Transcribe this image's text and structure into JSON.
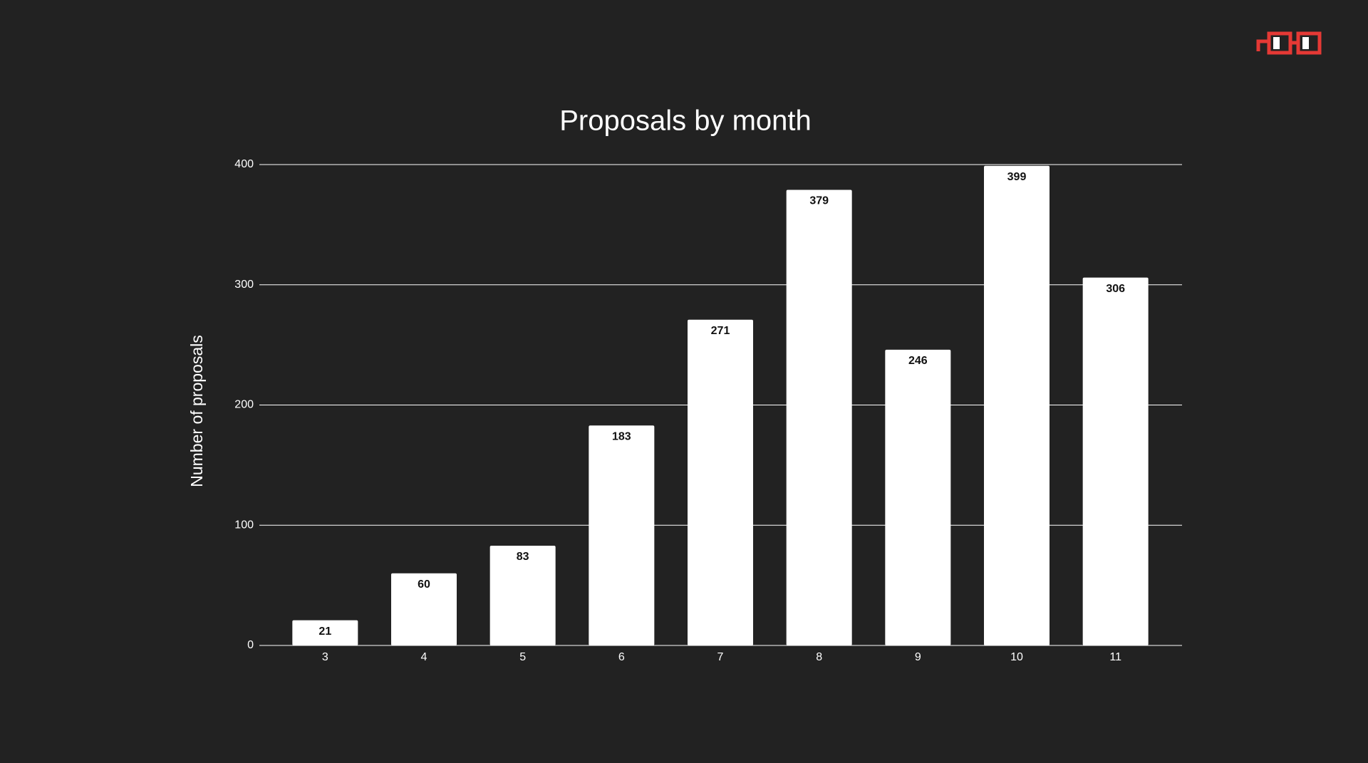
{
  "chart_data": {
    "type": "bar",
    "title": "Proposals by month",
    "y_label": "Number of proposals",
    "categories": [
      "3",
      "4",
      "5",
      "6",
      "7",
      "8",
      "9",
      "10",
      "11"
    ],
    "values": [
      21,
      60,
      83,
      183,
      271,
      379,
      246,
      399,
      306
    ],
    "color": "#ffffff",
    "ylim": [
      0,
      400
    ],
    "yticks": [
      0,
      100,
      200,
      300,
      400
    ],
    "grid": true
  }
}
